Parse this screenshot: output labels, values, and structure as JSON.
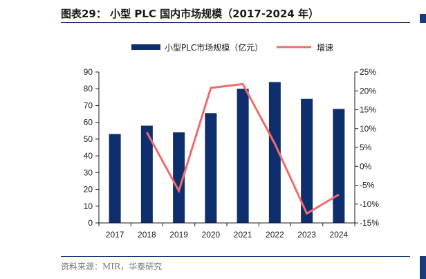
{
  "header": {
    "title": "图表29：  小型 PLC 国内市场规模（2017-2024 年）"
  },
  "footer": {
    "source": "资料来源：MIR，华泰研究"
  },
  "colors": {
    "bar": "#0f2e6e",
    "line": "#f06b6b",
    "rule": "#1b3a7a"
  },
  "chart_data": {
    "type": "bar",
    "categories": [
      "2017",
      "2018",
      "2019",
      "2020",
      "2021",
      "2022",
      "2023",
      "2024"
    ],
    "series": [
      {
        "name": "小型PLC市场规模（亿元）",
        "type": "bar",
        "axis": "left",
        "values": [
          53,
          58,
          54,
          65.5,
          80,
          84,
          74,
          68
        ]
      },
      {
        "name": "增速",
        "type": "line",
        "axis": "right",
        "unit": "%",
        "values": [
          null,
          9.0,
          -6.5,
          20.8,
          21.8,
          6.0,
          -12.5,
          -7.5
        ]
      }
    ],
    "yleft": {
      "min": 0,
      "max": 90,
      "step": 10,
      "ticks": [
        "0",
        "10",
        "20",
        "30",
        "40",
        "50",
        "60",
        "70",
        "80",
        "90"
      ]
    },
    "yright": {
      "min": -15,
      "max": 25,
      "step": 5,
      "ticks": [
        "-15%",
        "-10%",
        "-5%",
        "0%",
        "5%",
        "10%",
        "15%",
        "20%",
        "25%"
      ]
    },
    "legend_position": "top",
    "grid": false
  }
}
